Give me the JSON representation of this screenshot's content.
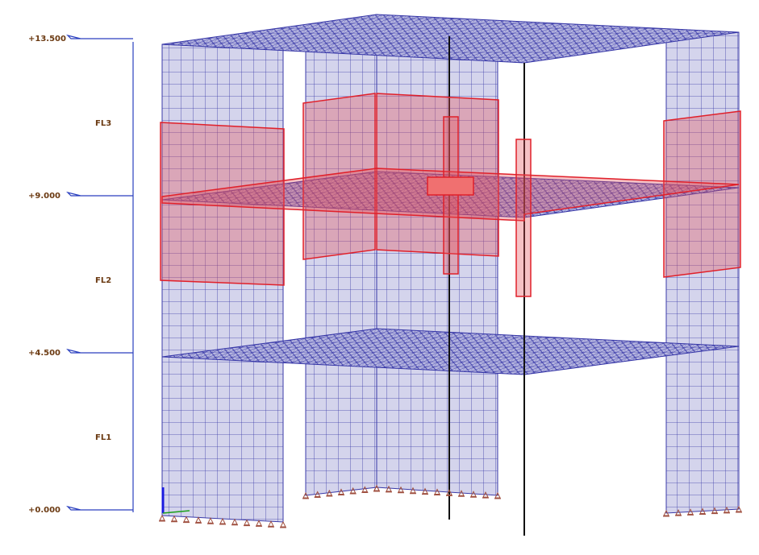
{
  "levels": [
    "+13.500",
    "+9.000",
    "+4.500",
    "+0.000"
  ],
  "floors": [
    "FL3",
    "FL2",
    "FL1"
  ]
}
